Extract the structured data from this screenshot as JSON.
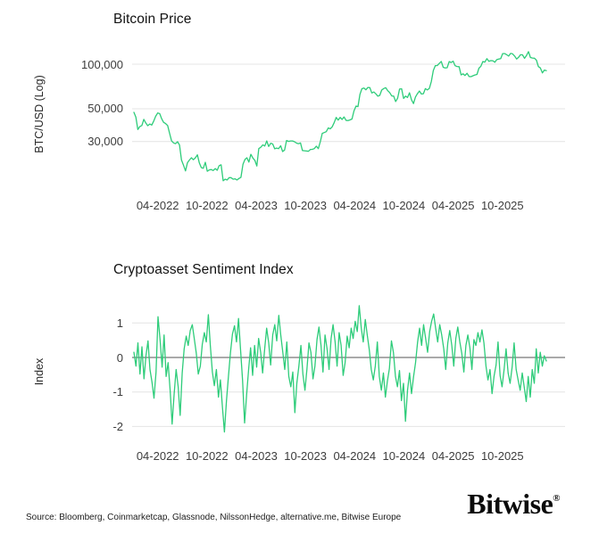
{
  "colors": {
    "line_green": "#2ecc7a",
    "grid_line": "#e4e4e4",
    "zero_line": "#555555",
    "title_text": "#121212",
    "tick_text": "#3d3d3d",
    "background": "#ffffff"
  },
  "chart_data": [
    {
      "type": "line",
      "title": "Bitcoin Price",
      "xlabel": "",
      "ylabel": "BTC/USD (Log)",
      "y_scale": "log",
      "ylim": [
        14000,
        140000
      ],
      "grid": true,
      "legend_position": "none",
      "y_tick_labels": [
        "100,000",
        "50,000",
        "30,000"
      ],
      "y_tick_values": [
        100000,
        50000,
        30000
      ],
      "x_tick_labels": [
        "04-2022",
        "10-2022",
        "04-2023",
        "10-2023",
        "04-2024",
        "10-2024",
        "04-2025",
        "10-2025"
      ],
      "x_range_months": [
        "01-2022",
        "12-2025"
      ],
      "series": [
        {
          "name": "BTC/USD",
          "units": "USD",
          "values": [
            47300,
            43900,
            36200,
            37900,
            38500,
            42400,
            40100,
            38400,
            39400,
            38800,
            41300,
            44500,
            46800,
            46300,
            42800,
            40400,
            39700,
            38500,
            34100,
            30300,
            29400,
            29000,
            29900,
            28400,
            22500,
            20800,
            19000,
            21600,
            22500,
            23300,
            22600,
            23300,
            24400,
            21500,
            20000,
            19800,
            21700,
            18900,
            19300,
            19400,
            19100,
            19700,
            19200,
            20600,
            20900,
            16300,
            16700,
            16500,
            17100,
            17100,
            16700,
            16800,
            16500,
            16900,
            17200,
            21100,
            22700,
            23300,
            21800,
            24600,
            23200,
            22400,
            20500,
            26900,
            27500,
            28500,
            28000,
            30300,
            27800,
            29200,
            28900,
            26800,
            27100,
            26900,
            28100,
            25700,
            26300,
            30500,
            30100,
            30300,
            30300,
            29900,
            29300,
            29000,
            29400,
            26100,
            26000,
            25900,
            25800,
            26500,
            26600,
            26900,
            27900,
            26900,
            29900,
            34100,
            34500,
            35000,
            37100,
            36600,
            37700,
            40200,
            43700,
            41900,
            43700,
            42300,
            44000,
            41700,
            41600,
            42000,
            42600,
            48300,
            52100,
            51700,
            62500,
            68300,
            69000,
            67200,
            69600,
            69400,
            63900,
            64900,
            63100,
            60800,
            61500,
            66900,
            68500,
            69300,
            66200,
            64300,
            61000,
            60900,
            55900,
            58900,
            67900,
            68200,
            58700,
            60900,
            59500,
            64100,
            57300,
            54200,
            60000,
            63200,
            65900,
            62800,
            63200,
            68400,
            67000,
            68700,
            76500,
            90600,
            97700,
            98000,
            101200,
            104400,
            95200,
            94300,
            94600,
            104100,
            102700,
            104800,
            97700,
            96500,
            96200,
            84700,
            86100,
            83900,
            86800,
            82600,
            82400,
            83500,
            84500,
            85200,
            94000,
            96900,
            104200,
            103200,
            109000,
            104600,
            105700,
            105500,
            103100,
            107300,
            108200,
            109200,
            117900,
            118000,
            115800,
            113500,
            118300,
            117400,
            113500,
            108400,
            111300,
            115900,
            115700,
            109600,
            114600,
            121600,
            111000,
            110100,
            109800,
            106500,
            96300,
            94300,
            87300,
            91200,
            90500
          ]
        }
      ]
    },
    {
      "type": "line",
      "title": "Cryptoasset Sentiment Index",
      "xlabel": "",
      "ylabel": "Index",
      "y_scale": "linear",
      "ylim": [
        -2.4,
        1.7
      ],
      "grid": true,
      "legend_position": "none",
      "y_tick_labels": [
        "1",
        "0",
        "-1",
        "-2"
      ],
      "y_tick_values": [
        1,
        0,
        -1,
        -2
      ],
      "x_tick_labels": [
        "04-2022",
        "10-2022",
        "04-2023",
        "10-2023",
        "04-2024",
        "10-2024",
        "04-2025",
        "10-2025"
      ],
      "x_range_months": [
        "01-2022",
        "12-2025"
      ],
      "series": [
        {
          "name": "Cryptoasset Sentiment Index",
          "units": "index",
          "values": [
            0.15,
            -0.25,
            0.42,
            -0.48,
            0.31,
            -0.62,
            0.05,
            0.48,
            -0.35,
            -0.72,
            -1.18,
            -0.42,
            1.18,
            0.52,
            -0.28,
            0.65,
            -0.55,
            -0.15,
            -0.95,
            -1.93,
            -1.05,
            -0.35,
            -0.85,
            -1.68,
            -0.45,
            0.25,
            0.62,
            0.35,
            0.78,
            0.95,
            0.55,
            0.12,
            -0.48,
            -0.25,
            0.38,
            0.72,
            0.45,
            1.24,
            0.35,
            -0.42,
            -0.82,
            -0.35,
            -1.15,
            -0.65,
            -1.45,
            -2.16,
            -1.25,
            -0.55,
            0.15,
            0.68,
            0.92,
            0.45,
            1.13,
            0.25,
            -0.65,
            -1.9,
            -1.1,
            -0.35,
            0.28,
            -0.52,
            0.35,
            -0.28,
            0.55,
            0.15,
            -0.45,
            0.25,
            0.85,
            0.42,
            -0.22,
            0.65,
            0.95,
            0.48,
            1.22,
            0.65,
            0.15,
            -0.35,
            0.45,
            -0.55,
            -0.85,
            -0.42,
            -1.6,
            -0.75,
            -0.25,
            0.35,
            -0.48,
            -0.95,
            -0.35,
            0.42,
            0.15,
            -0.62,
            -0.25,
            0.52,
            0.88,
            0.35,
            -0.42,
            0.65,
            0.25,
            -0.35,
            0.55,
            0.95,
            0.45,
            -0.25,
            0.72,
            0.35,
            -0.52,
            -0.15,
            0.62,
            0.28,
            0.85,
            0.55,
            1.05,
            0.75,
            1.5,
            0.85,
            0.45,
            1.1,
            0.65,
            0.22,
            -0.35,
            -0.65,
            -0.25,
            0.45,
            -0.55,
            -0.95,
            -0.45,
            -1.15,
            -0.68,
            -0.32,
            0.48,
            0.15,
            -0.55,
            -0.85,
            -0.38,
            -1.25,
            -0.75,
            -1.85,
            -0.95,
            -0.45,
            -1.05,
            -0.55,
            -0.15,
            0.45,
            0.85,
            0.35,
            0.95,
            0.55,
            0.15,
            0.75,
            1.05,
            1.26,
            0.85,
            0.45,
            0.95,
            0.65,
            0.25,
            -0.35,
            0.42,
            0.78,
            0.35,
            -0.25,
            0.55,
            0.88,
            0.45,
            0.12,
            -0.42,
            0.35,
            0.65,
            0.28,
            -0.35,
            0.52,
            0.35,
            0.72,
            0.45,
            0.8,
            0.42,
            -0.25,
            -0.65,
            -0.35,
            -1.05,
            -0.55,
            -0.22,
            0.45,
            -0.52,
            -0.85,
            -0.35,
            0.25,
            -0.45,
            -0.75,
            -0.28,
            0.42,
            -0.35,
            -0.65,
            -0.95,
            -0.45,
            -0.85,
            -1.28,
            -0.55,
            -1.15,
            -0.35,
            -0.75,
            0.25,
            -0.45,
            0.15,
            -0.25,
            0.05,
            -0.1
          ]
        }
      ]
    }
  ],
  "footer": {
    "source_text": "Source: Bloomberg, Coinmarketcap, Glassnode, NilssonHedge, alternative.me, Bitwise Europe",
    "logo_text": "Bitwise",
    "registered_mark": "®"
  }
}
